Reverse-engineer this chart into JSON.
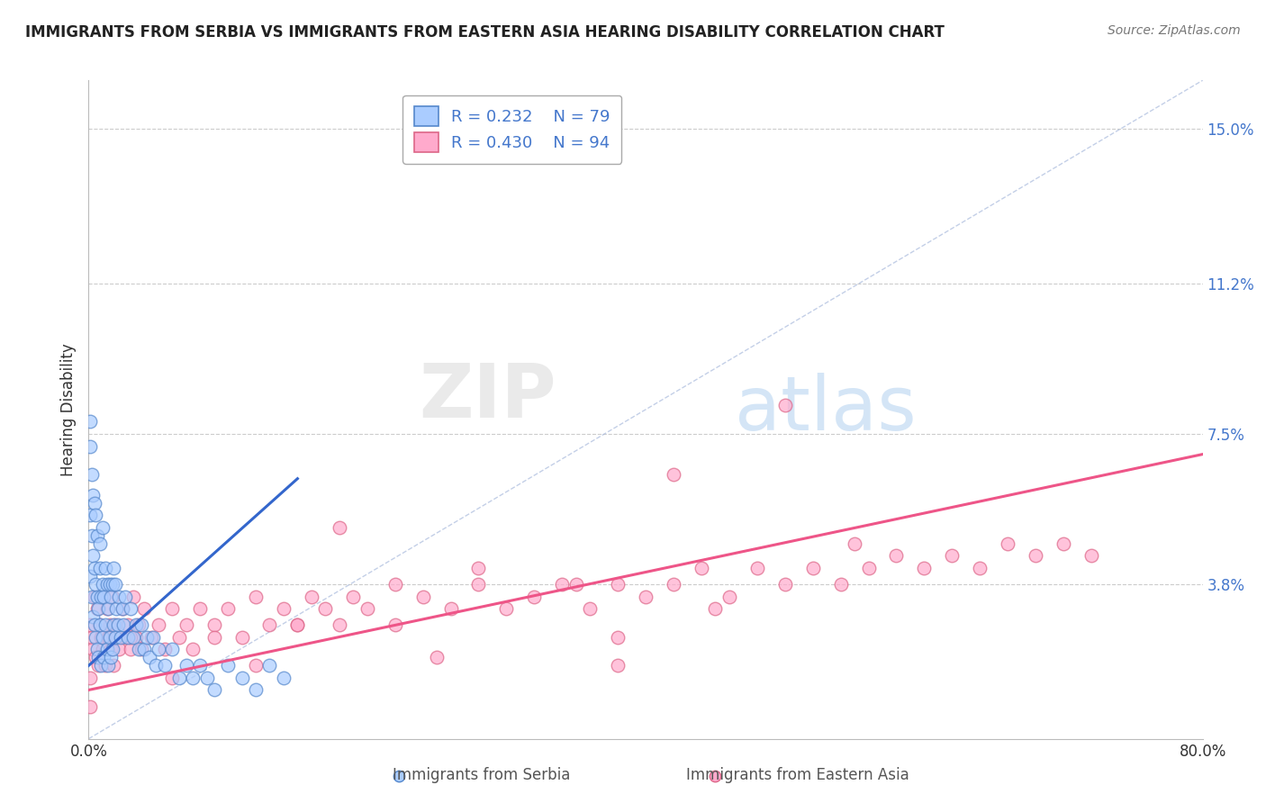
{
  "title": "IMMIGRANTS FROM SERBIA VS IMMIGRANTS FROM EASTERN ASIA HEARING DISABILITY CORRELATION CHART",
  "source": "Source: ZipAtlas.com",
  "ylabel": "Hearing Disability",
  "ytick_vals": [
    0.0,
    0.038,
    0.075,
    0.112,
    0.15
  ],
  "ytick_labels": [
    "",
    "3.8%",
    "7.5%",
    "11.2%",
    "15.0%"
  ],
  "xlim": [
    0.0,
    0.8
  ],
  "ylim": [
    0.0,
    0.162
  ],
  "serbia_R": 0.232,
  "serbia_N": 79,
  "eastern_asia_R": 0.43,
  "eastern_asia_N": 94,
  "serbia_color": "#aaccff",
  "serbia_edge_color": "#5588cc",
  "eastern_asia_color": "#ffaacc",
  "eastern_asia_edge_color": "#dd6688",
  "serbia_line_color": "#3366cc",
  "eastern_asia_line_color": "#ee5588",
  "background_color": "#ffffff",
  "grid_color": "#cccccc",
  "title_color": "#222222",
  "ytick_color": "#4477cc",
  "watermark_zip": "ZIP",
  "watermark_atlas": "atlas",
  "legend_edge_color": "#aaaaaa",
  "serbia_line_x0": 0.0,
  "serbia_line_y0": 0.018,
  "serbia_line_x1": 0.15,
  "serbia_line_y1": 0.064,
  "eastern_asia_line_x0": 0.0,
  "eastern_asia_line_y0": 0.012,
  "eastern_asia_line_x1": 0.8,
  "eastern_asia_line_y1": 0.07,
  "diag_line_x0": 0.0,
  "diag_line_y0": 0.0,
  "diag_line_x1": 0.8,
  "diag_line_y1": 0.162,
  "serbia_scatter_x": [
    0.001,
    0.001,
    0.002,
    0.002,
    0.002,
    0.003,
    0.003,
    0.003,
    0.004,
    0.004,
    0.004,
    0.005,
    0.005,
    0.005,
    0.006,
    0.006,
    0.006,
    0.007,
    0.007,
    0.008,
    0.008,
    0.008,
    0.009,
    0.009,
    0.01,
    0.01,
    0.01,
    0.011,
    0.011,
    0.012,
    0.012,
    0.013,
    0.013,
    0.014,
    0.014,
    0.015,
    0.015,
    0.016,
    0.016,
    0.017,
    0.017,
    0.018,
    0.018,
    0.019,
    0.019,
    0.02,
    0.021,
    0.022,
    0.023,
    0.024,
    0.025,
    0.026,
    0.028,
    0.03,
    0.032,
    0.034,
    0.036,
    0.038,
    0.04,
    0.042,
    0.044,
    0.046,
    0.048,
    0.05,
    0.055,
    0.06,
    0.065,
    0.07,
    0.075,
    0.08,
    0.085,
    0.09,
    0.1,
    0.11,
    0.12,
    0.13,
    0.14,
    0.001,
    0.001
  ],
  "serbia_scatter_y": [
    0.04,
    0.055,
    0.035,
    0.05,
    0.065,
    0.03,
    0.045,
    0.06,
    0.028,
    0.042,
    0.058,
    0.025,
    0.038,
    0.055,
    0.022,
    0.035,
    0.05,
    0.02,
    0.032,
    0.048,
    0.028,
    0.042,
    0.018,
    0.035,
    0.025,
    0.038,
    0.052,
    0.02,
    0.035,
    0.028,
    0.042,
    0.022,
    0.038,
    0.018,
    0.032,
    0.025,
    0.038,
    0.02,
    0.035,
    0.022,
    0.038,
    0.028,
    0.042,
    0.025,
    0.038,
    0.032,
    0.028,
    0.035,
    0.025,
    0.032,
    0.028,
    0.035,
    0.025,
    0.032,
    0.025,
    0.028,
    0.022,
    0.028,
    0.022,
    0.025,
    0.02,
    0.025,
    0.018,
    0.022,
    0.018,
    0.022,
    0.015,
    0.018,
    0.015,
    0.018,
    0.015,
    0.012,
    0.018,
    0.015,
    0.012,
    0.018,
    0.015,
    0.072,
    0.078
  ],
  "eastern_asia_scatter_x": [
    0.001,
    0.002,
    0.003,
    0.004,
    0.005,
    0.006,
    0.007,
    0.008,
    0.009,
    0.01,
    0.011,
    0.012,
    0.013,
    0.014,
    0.015,
    0.016,
    0.017,
    0.018,
    0.019,
    0.02,
    0.022,
    0.024,
    0.026,
    0.028,
    0.03,
    0.032,
    0.034,
    0.036,
    0.038,
    0.04,
    0.045,
    0.05,
    0.055,
    0.06,
    0.065,
    0.07,
    0.075,
    0.08,
    0.09,
    0.1,
    0.11,
    0.12,
    0.13,
    0.14,
    0.15,
    0.16,
    0.17,
    0.18,
    0.19,
    0.2,
    0.22,
    0.24,
    0.26,
    0.28,
    0.3,
    0.32,
    0.34,
    0.36,
    0.38,
    0.4,
    0.42,
    0.44,
    0.46,
    0.48,
    0.5,
    0.52,
    0.54,
    0.56,
    0.58,
    0.6,
    0.62,
    0.64,
    0.66,
    0.68,
    0.7,
    0.72,
    0.001,
    0.001,
    0.35,
    0.38,
    0.55,
    0.42,
    0.28,
    0.25,
    0.18,
    0.15,
    0.12,
    0.09,
    0.06,
    0.03,
    0.45,
    0.38,
    0.22,
    0.5
  ],
  "eastern_asia_scatter_y": [
    0.028,
    0.025,
    0.022,
    0.035,
    0.02,
    0.032,
    0.018,
    0.028,
    0.025,
    0.022,
    0.035,
    0.018,
    0.032,
    0.025,
    0.028,
    0.022,
    0.035,
    0.018,
    0.028,
    0.025,
    0.022,
    0.032,
    0.025,
    0.028,
    0.022,
    0.035,
    0.025,
    0.028,
    0.022,
    0.032,
    0.025,
    0.028,
    0.022,
    0.032,
    0.025,
    0.028,
    0.022,
    0.032,
    0.028,
    0.032,
    0.025,
    0.035,
    0.028,
    0.032,
    0.028,
    0.035,
    0.032,
    0.028,
    0.035,
    0.032,
    0.028,
    0.035,
    0.032,
    0.038,
    0.032,
    0.035,
    0.038,
    0.032,
    0.038,
    0.035,
    0.038,
    0.042,
    0.035,
    0.042,
    0.038,
    0.042,
    0.038,
    0.042,
    0.045,
    0.042,
    0.045,
    0.042,
    0.048,
    0.045,
    0.048,
    0.045,
    0.015,
    0.008,
    0.038,
    0.025,
    0.048,
    0.065,
    0.042,
    0.02,
    0.052,
    0.028,
    0.018,
    0.025,
    0.015,
    0.025,
    0.032,
    0.018,
    0.038,
    0.082
  ]
}
